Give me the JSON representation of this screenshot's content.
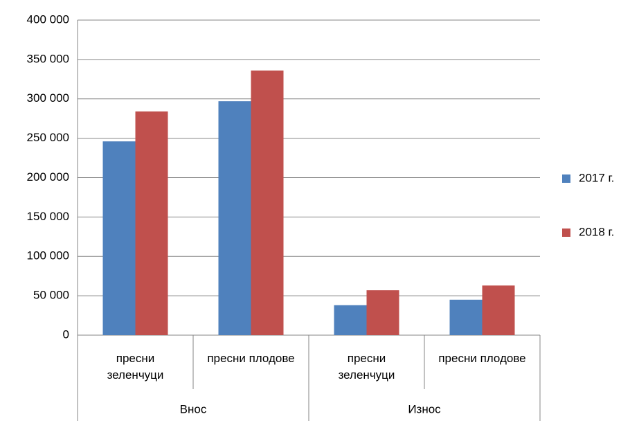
{
  "chart_data": {
    "type": "bar",
    "categories": [
      "пресни\nзеленчуци",
      "пресни плодове",
      "пресни\nзеленчуци",
      "пресни плодове"
    ],
    "group_labels": [
      "Внос",
      "Износ"
    ],
    "series": [
      {
        "name": "2017 г.",
        "color": "#4f81bd",
        "values": [
          246000,
          297000,
          38000,
          45000
        ]
      },
      {
        "name": "2018 г.",
        "color": "#c0504d",
        "values": [
          284000,
          336000,
          57000,
          63000
        ]
      }
    ],
    "ylim": [
      0,
      400000
    ],
    "yticks": [
      0,
      {
        "value": 50000,
        "label": "50 000"
      },
      {
        "value": 100000,
        "label": "100 000"
      },
      {
        "value": 150000,
        "label": "150 000"
      },
      {
        "value": 200000,
        "label": "200 000"
      },
      {
        "value": 250000,
        "label": "250 000"
      },
      {
        "value": 300000,
        "label": "300 000"
      },
      {
        "value": 350000,
        "label": "350 000"
      },
      {
        "value": 400000,
        "label": "400 000"
      }
    ],
    "grid": true,
    "legend": "right"
  }
}
